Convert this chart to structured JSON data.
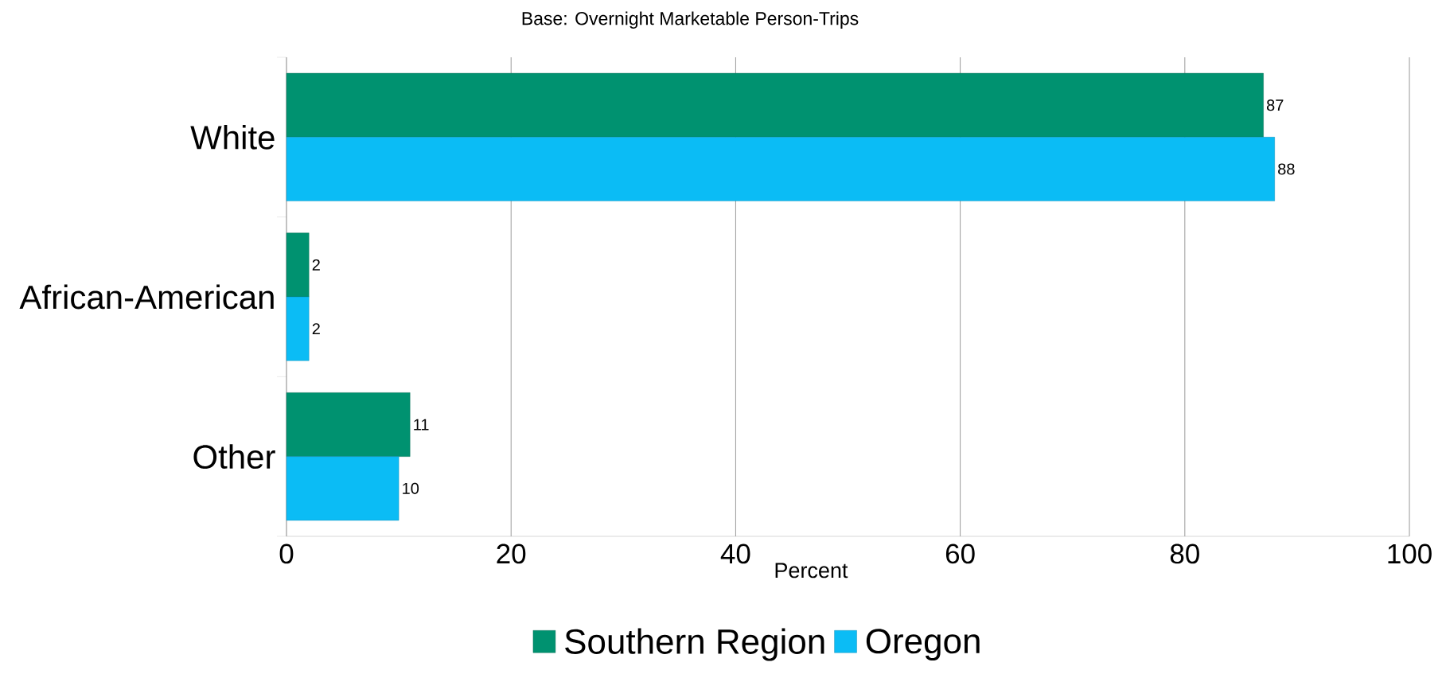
{
  "chart_data": {
    "type": "bar",
    "orientation": "horizontal",
    "subtitle": "Base: Overnight Marketable Person-Trips",
    "xlabel": "Percent",
    "categories": [
      "White",
      "African-American",
      "Other"
    ],
    "series": [
      {
        "name": "Southern Region",
        "color": "#009270",
        "values": [
          87,
          2,
          11
        ]
      },
      {
        "name": "Oregon",
        "color": "#0bbcf5",
        "values": [
          88,
          2,
          10
        ]
      }
    ],
    "xlim": [
      0,
      100
    ],
    "xticks": [
      0,
      20,
      40,
      60,
      80,
      100
    ],
    "grid": "x",
    "legend": "bottom",
    "data_labels": true
  }
}
